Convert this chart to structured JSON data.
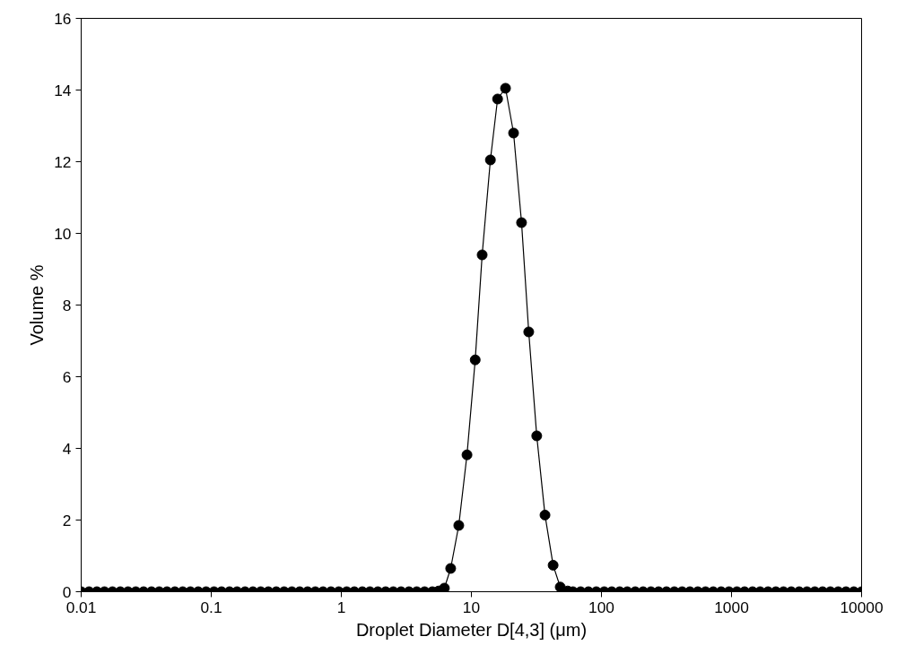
{
  "chart_data": {
    "type": "line",
    "xlabel": "Droplet Diameter D[4,3] (μm)",
    "ylabel": "Volume %",
    "log": "x",
    "marker": "circle",
    "line_style": "solid",
    "xlim": [
      0.01,
      10000
    ],
    "xticks": [
      0.01,
      0.1,
      1,
      10,
      100,
      1000,
      10000
    ],
    "ylim": [
      0,
      16
    ],
    "yticks": [
      0,
      2,
      4,
      6,
      8,
      10,
      12,
      14,
      16
    ],
    "series": [
      {
        "color": "#000000",
        "x": [
          0.01,
          0.0115,
          0.0132,
          0.0151,
          0.0174,
          0.02,
          0.0229,
          0.0263,
          0.0302,
          0.0347,
          0.0398,
          0.0457,
          0.0525,
          0.0603,
          0.0692,
          0.0794,
          0.0912,
          0.105,
          0.12,
          0.138,
          0.158,
          0.182,
          0.209,
          0.24,
          0.275,
          0.316,
          0.363,
          0.417,
          0.479,
          0.55,
          0.631,
          0.724,
          0.832,
          0.955,
          1.1,
          1.26,
          1.45,
          1.66,
          1.91,
          2.19,
          2.51,
          2.88,
          3.31,
          3.8,
          4.37,
          5.01,
          5.6,
          6.2,
          6.93,
          8.0,
          9.25,
          10.7,
          12.1,
          14.0,
          15.9,
          18.3,
          21.1,
          24.3,
          27.6,
          31.8,
          36.8,
          42.5,
          48.2,
          55.0,
          60.3,
          69.2,
          79.4,
          91.2,
          105,
          120,
          138,
          158,
          182,
          209,
          240,
          275,
          316,
          363,
          417,
          479,
          550,
          631,
          724,
          832,
          955,
          1100,
          1260,
          1450,
          1660,
          1910,
          2190,
          2510,
          2880,
          3310,
          3800,
          4370,
          5010,
          5750,
          6610,
          7590,
          8710,
          10000
        ],
        "values": [
          0,
          0,
          0,
          0,
          0,
          0,
          0,
          0,
          0,
          0,
          0,
          0,
          0,
          0,
          0,
          0,
          0,
          0,
          0,
          0,
          0,
          0,
          0,
          0,
          0,
          0,
          0,
          0,
          0,
          0,
          0,
          0,
          0,
          0,
          0,
          0,
          0,
          0,
          0,
          0,
          0,
          0,
          0,
          0,
          0,
          0,
          0.02,
          0.1,
          0.65,
          1.85,
          3.82,
          6.47,
          9.4,
          12.05,
          13.75,
          14.05,
          12.8,
          10.3,
          7.25,
          4.35,
          2.14,
          0.74,
          0.13,
          0.02,
          0,
          0,
          0,
          0,
          0,
          0,
          0,
          0,
          0,
          0,
          0,
          0,
          0,
          0,
          0,
          0,
          0,
          0,
          0,
          0,
          0,
          0,
          0,
          0,
          0,
          0,
          0,
          0,
          0,
          0,
          0,
          0,
          0,
          0,
          0,
          0,
          0,
          0
        ]
      }
    ]
  }
}
